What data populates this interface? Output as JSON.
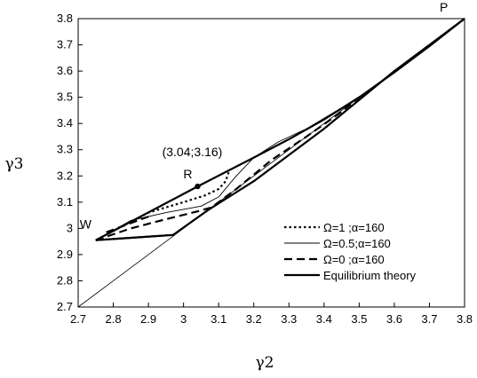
{
  "chart_data": {
    "type": "line",
    "xlabel": "γ2",
    "ylabel": "γ3",
    "xlim": [
      2.7,
      3.8
    ],
    "ylim": [
      2.7,
      3.8
    ],
    "xticks": [
      "2.7",
      "2.8",
      "2.9",
      "3",
      "3.1",
      "3.2",
      "3.3",
      "3.4",
      "3.5",
      "3.6",
      "3.7",
      "3.8"
    ],
    "yticks": [
      "2.7",
      "2.8",
      "2.9",
      "3",
      "3.1",
      "3.2",
      "3.3",
      "3.4",
      "3.5",
      "3.6",
      "3.7",
      "3.8"
    ],
    "grid": false,
    "legend_position": "bottom-right",
    "diagonal": {
      "x": [
        2.7,
        3.8
      ],
      "y": [
        2.7,
        3.8
      ]
    },
    "series": [
      {
        "name": "Ω=1 ;α=160",
        "style": "dotted",
        "x": [
          2.75,
          2.9,
          3.0,
          3.06,
          3.1,
          3.12,
          3.13
        ],
        "y": [
          2.955,
          3.06,
          3.1,
          3.125,
          3.15,
          3.18,
          3.22
        ]
      },
      {
        "name": "Ω=0.5;α=160",
        "style": "thin",
        "x": [
          2.75,
          2.85,
          2.95,
          3.05,
          3.1,
          3.15,
          3.2,
          3.27,
          3.35,
          3.45,
          3.5
        ],
        "y": [
          2.955,
          3.03,
          3.06,
          3.085,
          3.12,
          3.2,
          3.27,
          3.33,
          3.38,
          3.46,
          3.5
        ]
      },
      {
        "name": "Ω=0 ;α=160",
        "style": "dashed",
        "x": [
          2.75,
          2.85,
          2.95,
          3.04,
          3.08,
          3.15,
          3.25,
          3.35,
          3.45,
          3.5
        ],
        "y": [
          2.955,
          3.0,
          3.035,
          3.065,
          3.08,
          3.15,
          3.26,
          3.35,
          3.445,
          3.5
        ],
        "extra": {
          "x": [
            2.78,
            2.9
          ],
          "y": [
            2.985,
            3.045
          ]
        }
      },
      {
        "name": "Equilibrium theory",
        "style": "thick",
        "x": [
          2.75,
          2.97,
          3.07,
          3.2,
          3.4,
          3.6,
          3.8
        ],
        "y": [
          2.955,
          2.975,
          3.07,
          3.18,
          3.38,
          3.6,
          3.8
        ],
        "upper": {
          "x": [
            2.75,
            3.04,
            3.2,
            3.3,
            3.4,
            3.5,
            3.6,
            3.7,
            3.8
          ],
          "y": [
            2.955,
            3.16,
            3.27,
            3.34,
            3.415,
            3.5,
            3.595,
            3.695,
            3.8
          ]
        },
        "base": {
          "x": [
            2.75,
            2.97
          ],
          "y": [
            2.955,
            2.975
          ]
        }
      }
    ],
    "points": [
      {
        "label": "R",
        "x": 3.04,
        "y": 3.16,
        "coord_label": "(3.04;3.16)"
      }
    ],
    "annotations": [
      {
        "text": "W",
        "x": 2.75,
        "y": 2.955
      },
      {
        "text": "P",
        "x": 3.8,
        "y": 3.8
      }
    ]
  }
}
